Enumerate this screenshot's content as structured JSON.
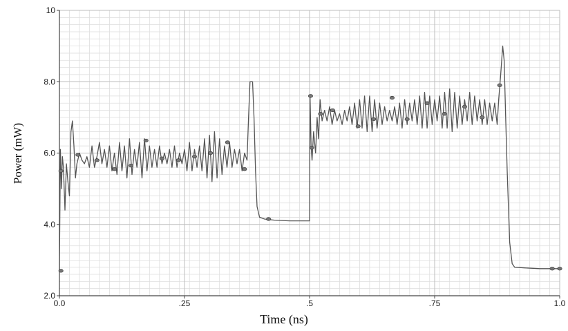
{
  "chart_data": {
    "type": "line",
    "xlabel": "Time (ns)",
    "ylabel": "Power (mW)",
    "xlim": [
      0,
      1.0
    ],
    "ylim": [
      2.0,
      10
    ],
    "x_ticks": [
      {
        "value": 0,
        "label": "0.0"
      },
      {
        "value": 0.25,
        "label": ".25"
      },
      {
        "value": 0.5,
        "label": ".5"
      },
      {
        "value": 0.75,
        "label": ".75"
      },
      {
        "value": 1.0,
        "label": "1.0"
      }
    ],
    "y_ticks": [
      {
        "value": 2.0,
        "label": "2.0"
      },
      {
        "value": 4.0,
        "label": "4.0"
      },
      {
        "value": 6.0,
        "label": "6.0"
      },
      {
        "value": 8.0,
        "label": "8.0"
      },
      {
        "value": 10,
        "label": "10"
      }
    ],
    "grid": true,
    "line_color": "#555555",
    "marker_color": "#777777",
    "series": [
      {
        "points": [
          [
            0.0,
            2.7
          ],
          [
            0.002,
            6.1
          ],
          [
            0.004,
            5.0
          ],
          [
            0.006,
            5.9
          ],
          [
            0.008,
            5.6
          ],
          [
            0.011,
            4.4
          ],
          [
            0.014,
            5.7
          ],
          [
            0.017,
            5.2
          ],
          [
            0.02,
            4.8
          ],
          [
            0.023,
            6.6
          ],
          [
            0.026,
            6.9
          ],
          [
            0.029,
            6.2
          ],
          [
            0.032,
            5.3
          ],
          [
            0.035,
            5.7
          ],
          [
            0.04,
            6.0
          ],
          [
            0.045,
            5.8
          ],
          [
            0.05,
            5.7
          ],
          [
            0.055,
            5.9
          ],
          [
            0.06,
            5.6
          ],
          [
            0.065,
            6.2
          ],
          [
            0.07,
            5.6
          ],
          [
            0.075,
            5.9
          ],
          [
            0.08,
            6.3
          ],
          [
            0.085,
            5.7
          ],
          [
            0.09,
            6.1
          ],
          [
            0.095,
            5.6
          ],
          [
            0.1,
            6.2
          ],
          [
            0.105,
            5.5
          ],
          [
            0.11,
            6.0
          ],
          [
            0.115,
            5.4
          ],
          [
            0.12,
            6.3
          ],
          [
            0.125,
            5.5
          ],
          [
            0.13,
            6.2
          ],
          [
            0.135,
            5.3
          ],
          [
            0.14,
            6.4
          ],
          [
            0.145,
            5.4
          ],
          [
            0.15,
            6.1
          ],
          [
            0.155,
            5.6
          ],
          [
            0.16,
            6.3
          ],
          [
            0.165,
            5.3
          ],
          [
            0.17,
            6.4
          ],
          [
            0.175,
            5.5
          ],
          [
            0.18,
            6.2
          ],
          [
            0.185,
            5.6
          ],
          [
            0.19,
            6.1
          ],
          [
            0.195,
            5.6
          ],
          [
            0.2,
            6.2
          ],
          [
            0.205,
            5.7
          ],
          [
            0.21,
            6.0
          ],
          [
            0.215,
            5.7
          ],
          [
            0.22,
            6.1
          ],
          [
            0.225,
            5.6
          ],
          [
            0.23,
            6.2
          ],
          [
            0.235,
            5.6
          ],
          [
            0.24,
            6.0
          ],
          [
            0.245,
            5.7
          ],
          [
            0.25,
            6.1
          ],
          [
            0.255,
            5.5
          ],
          [
            0.26,
            6.3
          ],
          [
            0.265,
            5.5
          ],
          [
            0.27,
            6.1
          ],
          [
            0.275,
            5.6
          ],
          [
            0.28,
            6.2
          ],
          [
            0.285,
            5.5
          ],
          [
            0.29,
            6.4
          ],
          [
            0.295,
            5.3
          ],
          [
            0.3,
            6.5
          ],
          [
            0.305,
            5.2
          ],
          [
            0.31,
            6.6
          ],
          [
            0.315,
            5.3
          ],
          [
            0.32,
            6.4
          ],
          [
            0.325,
            5.4
          ],
          [
            0.33,
            6.2
          ],
          [
            0.335,
            5.6
          ],
          [
            0.34,
            6.3
          ],
          [
            0.345,
            5.6
          ],
          [
            0.35,
            6.1
          ],
          [
            0.355,
            5.7
          ],
          [
            0.36,
            6.1
          ],
          [
            0.365,
            5.5
          ],
          [
            0.37,
            6.0
          ],
          [
            0.375,
            5.8
          ],
          [
            0.378,
            7.0
          ],
          [
            0.381,
            8.0
          ],
          [
            0.386,
            8.0
          ],
          [
            0.389,
            7.0
          ],
          [
            0.392,
            5.5
          ],
          [
            0.395,
            4.5
          ],
          [
            0.4,
            4.2
          ],
          [
            0.41,
            4.15
          ],
          [
            0.43,
            4.12
          ],
          [
            0.46,
            4.1
          ],
          [
            0.5,
            4.1
          ],
          [
            0.501,
            7.6
          ],
          [
            0.503,
            6.2
          ],
          [
            0.505,
            5.8
          ],
          [
            0.508,
            6.6
          ],
          [
            0.512,
            6.0
          ],
          [
            0.515,
            7.0
          ],
          [
            0.518,
            6.4
          ],
          [
            0.521,
            7.5
          ],
          [
            0.525,
            6.9
          ],
          [
            0.53,
            7.2
          ],
          [
            0.535,
            6.9
          ],
          [
            0.54,
            7.3
          ],
          [
            0.545,
            6.8
          ],
          [
            0.55,
            7.2
          ],
          [
            0.555,
            6.9
          ],
          [
            0.56,
            7.1
          ],
          [
            0.565,
            6.8
          ],
          [
            0.57,
            7.2
          ],
          [
            0.575,
            6.9
          ],
          [
            0.58,
            7.3
          ],
          [
            0.585,
            6.8
          ],
          [
            0.59,
            7.4
          ],
          [
            0.595,
            6.7
          ],
          [
            0.6,
            7.5
          ],
          [
            0.605,
            6.7
          ],
          [
            0.61,
            7.6
          ],
          [
            0.615,
            6.6
          ],
          [
            0.62,
            7.6
          ],
          [
            0.625,
            6.6
          ],
          [
            0.63,
            7.5
          ],
          [
            0.635,
            6.7
          ],
          [
            0.64,
            7.4
          ],
          [
            0.645,
            6.8
          ],
          [
            0.65,
            7.3
          ],
          [
            0.655,
            6.9
          ],
          [
            0.66,
            7.2
          ],
          [
            0.665,
            6.9
          ],
          [
            0.67,
            7.3
          ],
          [
            0.675,
            6.8
          ],
          [
            0.68,
            7.4
          ],
          [
            0.685,
            6.7
          ],
          [
            0.69,
            7.5
          ],
          [
            0.695,
            6.8
          ],
          [
            0.7,
            7.4
          ],
          [
            0.705,
            6.9
          ],
          [
            0.71,
            7.5
          ],
          [
            0.715,
            6.8
          ],
          [
            0.72,
            7.6
          ],
          [
            0.725,
            6.7
          ],
          [
            0.73,
            7.7
          ],
          [
            0.735,
            6.7
          ],
          [
            0.74,
            7.6
          ],
          [
            0.745,
            6.8
          ],
          [
            0.75,
            7.5
          ],
          [
            0.755,
            6.9
          ],
          [
            0.76,
            7.6
          ],
          [
            0.765,
            6.7
          ],
          [
            0.77,
            7.7
          ],
          [
            0.775,
            6.7
          ],
          [
            0.78,
            7.8
          ],
          [
            0.785,
            6.6
          ],
          [
            0.79,
            7.7
          ],
          [
            0.795,
            6.7
          ],
          [
            0.8,
            7.6
          ],
          [
            0.805,
            6.8
          ],
          [
            0.81,
            7.5
          ],
          [
            0.815,
            6.9
          ],
          [
            0.82,
            7.7
          ],
          [
            0.825,
            6.8
          ],
          [
            0.83,
            7.6
          ],
          [
            0.835,
            6.9
          ],
          [
            0.84,
            7.5
          ],
          [
            0.845,
            6.8
          ],
          [
            0.85,
            7.5
          ],
          [
            0.855,
            6.8
          ],
          [
            0.86,
            7.4
          ],
          [
            0.865,
            6.9
          ],
          [
            0.87,
            7.4
          ],
          [
            0.875,
            6.8
          ],
          [
            0.878,
            7.5
          ],
          [
            0.882,
            8.2
          ],
          [
            0.886,
            9.0
          ],
          [
            0.889,
            8.6
          ],
          [
            0.892,
            7.0
          ],
          [
            0.895,
            5.5
          ],
          [
            0.9,
            3.5
          ],
          [
            0.905,
            2.9
          ],
          [
            0.91,
            2.8
          ],
          [
            0.93,
            2.78
          ],
          [
            0.96,
            2.76
          ],
          [
            1.0,
            2.76
          ]
        ],
        "markers": [
          [
            0.003,
            2.7
          ],
          [
            0.003,
            5.5
          ],
          [
            0.037,
            5.95
          ],
          [
            0.075,
            5.8
          ],
          [
            0.11,
            5.55
          ],
          [
            0.143,
            5.65
          ],
          [
            0.173,
            6.35
          ],
          [
            0.205,
            5.85
          ],
          [
            0.238,
            5.8
          ],
          [
            0.27,
            5.9
          ],
          [
            0.302,
            6.0
          ],
          [
            0.336,
            6.3
          ],
          [
            0.37,
            5.55
          ],
          [
            0.418,
            4.15
          ],
          [
            0.502,
            7.6
          ],
          [
            0.504,
            6.15
          ],
          [
            0.522,
            7.1
          ],
          [
            0.546,
            7.2
          ],
          [
            0.597,
            6.75
          ],
          [
            0.628,
            6.95
          ],
          [
            0.665,
            7.55
          ],
          [
            0.695,
            6.95
          ],
          [
            0.735,
            7.4
          ],
          [
            0.77,
            7.1
          ],
          [
            0.81,
            7.3
          ],
          [
            0.845,
            7.0
          ],
          [
            0.88,
            7.9
          ],
          [
            0.985,
            2.76
          ],
          [
            1.0,
            2.76
          ]
        ]
      }
    ]
  }
}
